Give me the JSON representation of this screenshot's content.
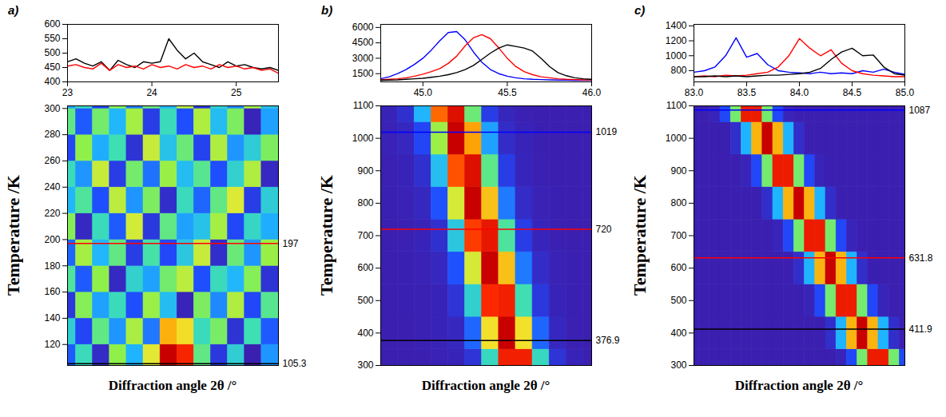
{
  "chart_data": [
    {
      "panel": "a)",
      "y_label": "Temperature /K",
      "x_label": "Diffraction angle 2θ /°",
      "profile": {
        "type": "line",
        "xlim": [
          23,
          25.5
        ],
        "xticks": [
          23,
          24,
          25
        ],
        "ylim": [
          400,
          600
        ],
        "yticks": [
          400,
          450,
          500,
          550,
          600
        ],
        "x": [
          23.0,
          23.1,
          23.2,
          23.3,
          23.4,
          23.5,
          23.6,
          23.7,
          23.8,
          23.9,
          24.0,
          24.1,
          24.2,
          24.3,
          24.4,
          24.5,
          24.6,
          24.7,
          24.8,
          24.9,
          25.0,
          25.1,
          25.2,
          25.3,
          25.4,
          25.5
        ],
        "series": [
          {
            "temperature": 105.3,
            "color": "#000000",
            "values": [
              470,
              480,
              465,
              455,
              470,
              440,
              475,
              460,
              450,
              470,
              465,
              470,
              550,
              510,
              480,
              500,
              470,
              460,
              450,
              470,
              455,
              460,
              450,
              445,
              450,
              440
            ]
          },
          {
            "temperature": 197,
            "color": "#ff0000",
            "values": [
              455,
              460,
              450,
              445,
              465,
              440,
              460,
              450,
              455,
              445,
              460,
              450,
              455,
              445,
              460,
              450,
              455,
              445,
              460,
              450,
              455,
              445,
              450,
              440,
              445,
              430
            ]
          }
        ]
      },
      "map": {
        "type": "heatmap",
        "xlim": [
          23,
          25.5
        ],
        "ylim": [
          104,
          302
        ],
        "yticks": [
          120,
          140,
          160,
          180,
          200,
          220,
          240,
          260,
          280,
          300
        ],
        "tick_labels": "y",
        "cell_x": [
          23.0,
          23.2,
          23.4,
          23.6,
          23.8,
          24.0,
          24.2,
          24.4,
          24.6,
          24.8,
          25.0,
          25.2,
          25.4
        ],
        "cell_y": [
          110,
          130,
          150,
          170,
          190,
          210,
          230,
          250,
          270,
          290,
          310
        ],
        "cells": [
          [
            440,
            470,
            425,
            490,
            455,
            505,
            560,
            545,
            480,
            430,
            465,
            420,
            450
          ],
          [
            465,
            435,
            480,
            450,
            495,
            445,
            520,
            510,
            470,
            485,
            428,
            472,
            440
          ],
          [
            430,
            488,
            452,
            470,
            438,
            492,
            458,
            422,
            486,
            448,
            496,
            436,
            478
          ],
          [
            476,
            440,
            490,
            424,
            466,
            452,
            484,
            498,
            438,
            470,
            456,
            488,
            428
          ],
          [
            442,
            494,
            456,
            480,
            432,
            474,
            436,
            462,
            500,
            426,
            482,
            450,
            492
          ],
          [
            488,
            424,
            470,
            440,
            502,
            430,
            480,
            452,
            460,
            494,
            436,
            468,
            454
          ],
          [
            456,
            476,
            438,
            498,
            450,
            486,
            426,
            470,
            442,
            480,
            504,
            432,
            464
          ],
          [
            470,
            450,
            500,
            432,
            484,
            444,
            492,
            458,
            478,
            438,
            466,
            496,
            424
          ],
          [
            436,
            490,
            454,
            472,
            428,
            500,
            460,
            482,
            434,
            496,
            450,
            464,
            486
          ],
          [
            480,
            440,
            484,
            456,
            494,
            432,
            470,
            438,
            496,
            458,
            486,
            422,
            452
          ],
          [
            452,
            468,
            436,
            488,
            446,
            482,
            456,
            498,
            430,
            466,
            448,
            494,
            460
          ]
        ]
      }
    },
    {
      "panel": "b)",
      "y_label": "Temperature /K",
      "x_label": "Diffraction angle 2θ /°",
      "profile": {
        "type": "line",
        "xlim": [
          44.75,
          46
        ],
        "xticks": [
          {
            "value": 45,
            "label": "45.0"
          },
          {
            "value": 45.5,
            "label": "45.5"
          },
          {
            "value": 46,
            "label": "46.0"
          }
        ],
        "ylim": [
          700,
          6300
        ],
        "yticks": [
          1500,
          3000,
          4500,
          6000
        ],
        "x": [
          44.75,
          44.8,
          44.85,
          44.9,
          44.95,
          45,
          45.05,
          45.1,
          45.15,
          45.2,
          45.25,
          45.3,
          45.35,
          45.4,
          45.45,
          45.5,
          45.55,
          45.6,
          45.65,
          45.7,
          45.75,
          45.8,
          45.85,
          45.9,
          45.95,
          46
        ],
        "series": [
          {
            "temperature": 1019,
            "color": "#0000ff",
            "values": [
              1000,
              1200,
              1500,
              1900,
              2400,
              3000,
              3800,
              4700,
              5500,
              5600,
              4800,
              3600,
              2600,
              1900,
              1500,
              1250,
              1100,
              1000,
              950,
              920,
              900,
              880,
              870,
              860,
              850,
              850
            ]
          },
          {
            "temperature": 720,
            "color": "#ff0000",
            "values": [
              900,
              950,
              1000,
              1100,
              1250,
              1450,
              1700,
              2000,
              2500,
              3200,
              4200,
              5000,
              5300,
              4900,
              4000,
              3000,
              2200,
              1700,
              1400,
              1200,
              1100,
              1000,
              950,
              920,
              900,
              880
            ]
          },
          {
            "temperature": 376.9,
            "color": "#000000",
            "values": [
              850,
              870,
              900,
              950,
              1000,
              1050,
              1150,
              1250,
              1400,
              1600,
              1900,
              2300,
              2900,
              3500,
              4000,
              4300,
              4150,
              4000,
              3700,
              3000,
              2200,
              1600,
              1300,
              1100,
              1000,
              950
            ]
          }
        ]
      },
      "map": {
        "type": "heatmap",
        "xlim": [
          44.75,
          46
        ],
        "ylim": [
          300,
          1100
        ],
        "yticks": [
          300,
          400,
          500,
          600,
          700,
          800,
          900,
          1000,
          1100
        ],
        "tick_labels": "y",
        "cell_x": [
          44.8,
          44.9,
          45.0,
          45.1,
          45.2,
          45.3,
          45.4,
          45.5,
          45.6,
          45.7,
          45.8,
          45.9,
          46.0
        ],
        "cell_y": [
          300,
          400,
          500,
          600,
          700,
          800,
          900,
          1000,
          1100
        ],
        "cells": [
          [
            850,
            850,
            850,
            880,
            900,
            1100,
            2300,
            4600,
            4600,
            2300,
            1100,
            900,
            850
          ],
          [
            850,
            850,
            870,
            900,
            950,
            1500,
            3500,
            5000,
            3500,
            1500,
            950,
            870,
            850
          ],
          [
            850,
            860,
            870,
            900,
            1100,
            2200,
            4500,
            4600,
            2400,
            1150,
            900,
            860,
            850
          ],
          [
            850,
            860,
            880,
            950,
            1400,
            3300,
            5000,
            3700,
            1600,
            1000,
            880,
            860,
            850
          ],
          [
            850,
            870,
            900,
            1050,
            2100,
            4400,
            4700,
            2500,
            1200,
            920,
            870,
            850,
            850
          ],
          [
            860,
            880,
            950,
            1400,
            3300,
            5000,
            3700,
            1600,
            1000,
            880,
            860,
            850,
            850
          ],
          [
            870,
            900,
            1050,
            2000,
            4300,
            4800,
            2600,
            1200,
            920,
            870,
            850,
            850,
            850
          ],
          [
            880,
            950,
            1300,
            3000,
            5000,
            3900,
            1800,
            1000,
            900,
            860,
            850,
            850,
            850
          ],
          [
            900,
            1050,
            1900,
            4200,
            4800,
            2700,
            1200,
            930,
            870,
            850,
            850,
            850,
            850
          ]
        ]
      }
    },
    {
      "panel": "c)",
      "y_label": "Temperature /K",
      "x_label": "Diffraction angle 2θ /°",
      "profile": {
        "type": "line",
        "xlim": [
          83,
          85
        ],
        "xticks": [
          {
            "value": 83,
            "label": "83.0"
          },
          {
            "value": 83.5,
            "label": "83.5"
          },
          {
            "value": 84,
            "label": "84.0"
          },
          {
            "value": 84.5,
            "label": "84.5"
          },
          {
            "value": 85,
            "label": "85.0"
          }
        ],
        "ylim": [
          650,
          1420
        ],
        "yticks": [
          800,
          1000,
          1200,
          1400
        ],
        "x": [
          83.0,
          83.1,
          83.2,
          83.3,
          83.4,
          83.5,
          83.6,
          83.7,
          83.8,
          83.9,
          84.0,
          84.1,
          84.2,
          84.3,
          84.4,
          84.5,
          84.6,
          84.7,
          84.8,
          84.9,
          85.0
        ],
        "series": [
          {
            "temperature": 1087,
            "color": "#0000ff",
            "values": [
              780,
              800,
              850,
              1000,
              1240,
              980,
              1030,
              880,
              800,
              780,
              770,
              760,
              780,
              760,
              770,
              760,
              800,
              780,
              820,
              780,
              750
            ]
          },
          {
            "temperature": 631.8,
            "color": "#ff0000",
            "values": [
              720,
              730,
              720,
              740,
              730,
              740,
              760,
              780,
              850,
              1000,
              1230,
              1100,
              1000,
              1080,
              900,
              800,
              760,
              740,
              730,
              720,
              720
            ]
          },
          {
            "temperature": 411.9,
            "color": "#000000",
            "values": [
              720,
              720,
              730,
              720,
              730,
              720,
              730,
              740,
              740,
              750,
              760,
              780,
              830,
              950,
              1050,
              1100,
              1000,
              1010,
              850,
              760,
              740
            ]
          }
        ]
      },
      "map": {
        "type": "heatmap",
        "xlim": [
          83,
          85
        ],
        "ylim": [
          300,
          1100
        ],
        "yticks": [
          300,
          400,
          500,
          600,
          700,
          800,
          900,
          1000,
          1100
        ],
        "tick_labels": "y",
        "cell_x": [
          83.0,
          83.1,
          83.2,
          83.3,
          83.4,
          83.5,
          83.6,
          83.7,
          83.8,
          83.9,
          84.0,
          84.1,
          84.2,
          84.3,
          84.4,
          84.5,
          84.6,
          84.7,
          84.8,
          84.9,
          85.0
        ],
        "cell_y": [
          300,
          400,
          500,
          600,
          700,
          800,
          900,
          1000,
          1100
        ],
        "cells": [
          [
            720,
            720,
            720,
            720,
            720,
            720,
            720,
            720,
            720,
            720,
            720,
            720,
            720,
            720,
            727,
            775,
            940,
            1160,
            1160,
            940,
            775
          ],
          [
            720,
            720,
            720,
            720,
            720,
            720,
            720,
            720,
            720,
            720,
            720,
            720,
            720,
            740,
            840,
            1060,
            1200,
            1060,
            840,
            740,
            720
          ],
          [
            720,
            720,
            720,
            720,
            720,
            720,
            720,
            720,
            720,
            720,
            720,
            727,
            775,
            940,
            1160,
            1160,
            940,
            775,
            727,
            720,
            720
          ],
          [
            720,
            720,
            720,
            720,
            720,
            720,
            720,
            720,
            720,
            720,
            740,
            840,
            1060,
            1200,
            1060,
            840,
            740,
            720,
            720,
            720,
            720
          ],
          [
            720,
            720,
            720,
            720,
            720,
            720,
            720,
            720,
            727,
            775,
            940,
            1160,
            1160,
            940,
            775,
            727,
            720,
            720,
            720,
            720,
            720
          ],
          [
            720,
            720,
            720,
            720,
            720,
            720,
            720,
            740,
            840,
            1060,
            1200,
            1060,
            840,
            740,
            720,
            720,
            720,
            720,
            720,
            720,
            720
          ],
          [
            720,
            720,
            720,
            720,
            720,
            727,
            775,
            940,
            1160,
            1160,
            940,
            775,
            727,
            720,
            720,
            720,
            720,
            720,
            720,
            720,
            720
          ],
          [
            720,
            720,
            720,
            720,
            740,
            840,
            1060,
            1200,
            1060,
            840,
            740,
            720,
            720,
            720,
            720,
            720,
            720,
            720,
            720,
            720,
            720
          ],
          [
            720,
            720,
            727,
            775,
            940,
            1160,
            1160,
            940,
            775,
            727,
            720,
            720,
            720,
            720,
            720,
            720,
            720,
            720,
            720,
            720,
            720
          ]
        ]
      }
    }
  ]
}
